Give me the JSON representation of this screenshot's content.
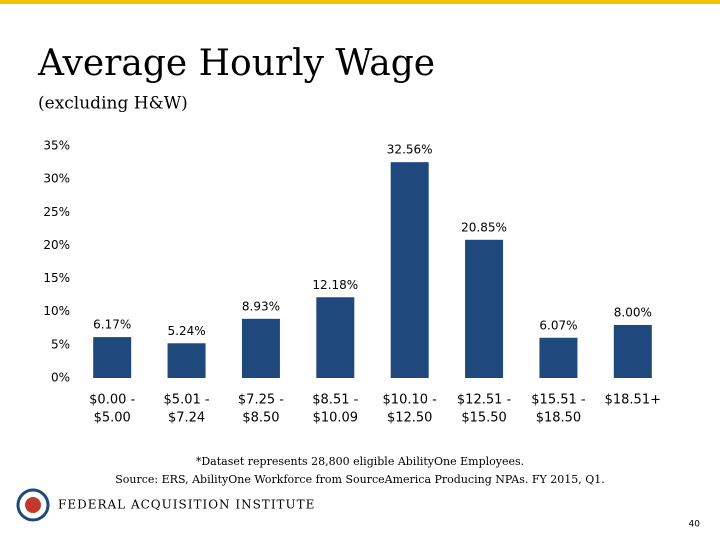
{
  "chart_data": {
    "type": "bar",
    "title": "Average Hourly Wage",
    "subtitle": "(excluding H&W)",
    "categories": [
      [
        "$0.00 -",
        "$5.00"
      ],
      [
        "$5.01 -",
        "$7.24"
      ],
      [
        "$7.25 -",
        "$8.50"
      ],
      [
        "$8.51 -",
        "$10.09"
      ],
      [
        "$10.10 -",
        "$12.50"
      ],
      [
        "$12.51 -",
        "$15.50"
      ],
      [
        "$15.51 -",
        "$18.50"
      ],
      [
        "$18.51+"
      ]
    ],
    "values": [
      6.17,
      5.24,
      8.93,
      12.18,
      32.56,
      20.85,
      6.07,
      8.0
    ],
    "value_labels": [
      "6.17%",
      "5.24%",
      "8.93%",
      "12.18%",
      "32.56%",
      "20.85%",
      "6.07%",
      "8.00%"
    ],
    "color": "#1f497d",
    "ylim": [
      0,
      35
    ],
    "yticks": [
      {
        "value": 0,
        "label": "0%"
      },
      {
        "value": 5,
        "label": "5%"
      },
      {
        "value": 10,
        "label": "10%"
      },
      {
        "value": 15,
        "label": "15%"
      },
      {
        "value": 20,
        "label": "20%"
      },
      {
        "value": 25,
        "label": "25%"
      },
      {
        "value": 30,
        "label": "30%"
      },
      {
        "value": 35,
        "label": "35%"
      }
    ],
    "grid": false,
    "notes": [
      "*Dataset represents 28,800 eligible AbilityOne Employees.",
      "Source: ERS, AbilityOne Workforce from SourceAmerica Producing NPAs.  FY 2015, Q1."
    ]
  },
  "footer": {
    "organization": "FEDERAL ACQUISITION INSTITUTE",
    "page_number": 40
  }
}
